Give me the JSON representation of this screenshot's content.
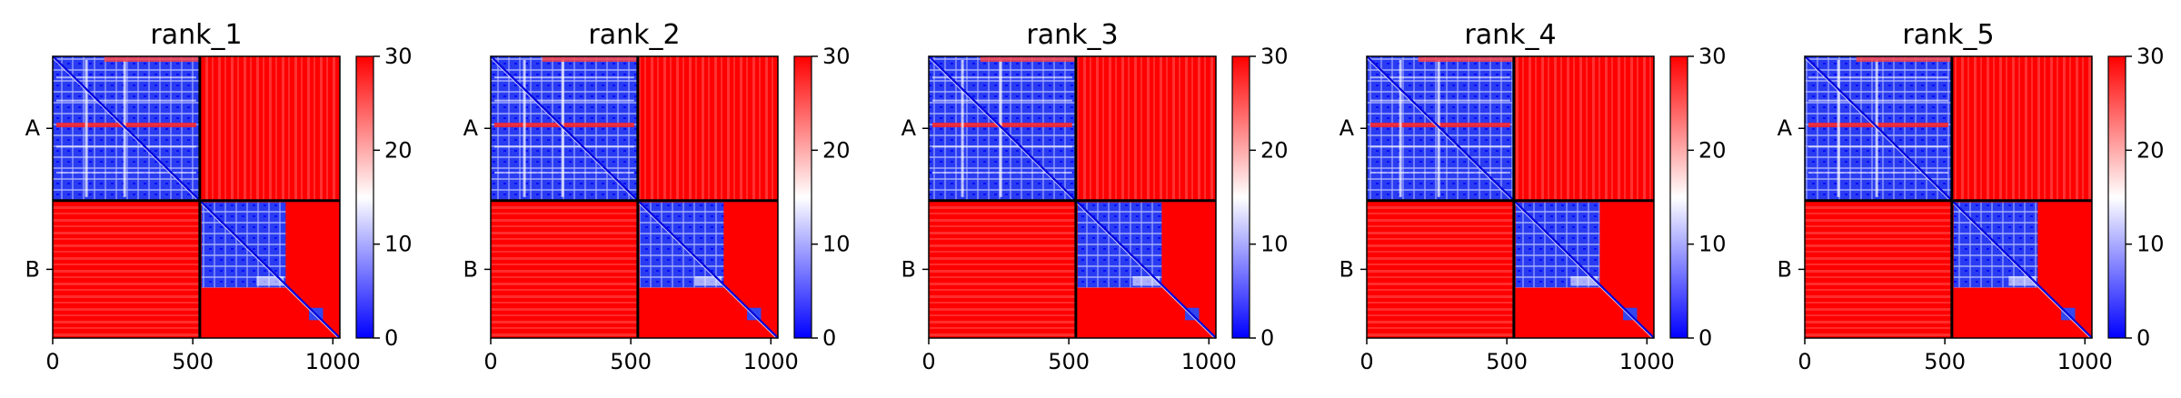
{
  "chart_data": {
    "type": "heatmap",
    "colormap": {
      "name": "bwr",
      "low": "#0000ff",
      "mid": "#ffffff",
      "high": "#ff0000"
    },
    "colorbar": {
      "range": [
        0,
        30
      ],
      "ticks": [
        "0",
        "10",
        "20",
        "30"
      ]
    },
    "xlim": [
      0,
      1025
    ],
    "x_ticks": [
      {
        "value": 0,
        "label": "0"
      },
      {
        "value": 500,
        "label": "500"
      },
      {
        "value": 1000,
        "label": "1000"
      }
    ],
    "chain_boundary": 525,
    "y_ticks": [
      {
        "value": 262,
        "label": "A"
      },
      {
        "value": 775,
        "label": "B"
      }
    ],
    "panels": [
      {
        "title": "rank_1"
      },
      {
        "title": "rank_2"
      },
      {
        "title": "rank_3"
      },
      {
        "title": "rank_4"
      },
      {
        "title": "rank_5"
      }
    ]
  }
}
